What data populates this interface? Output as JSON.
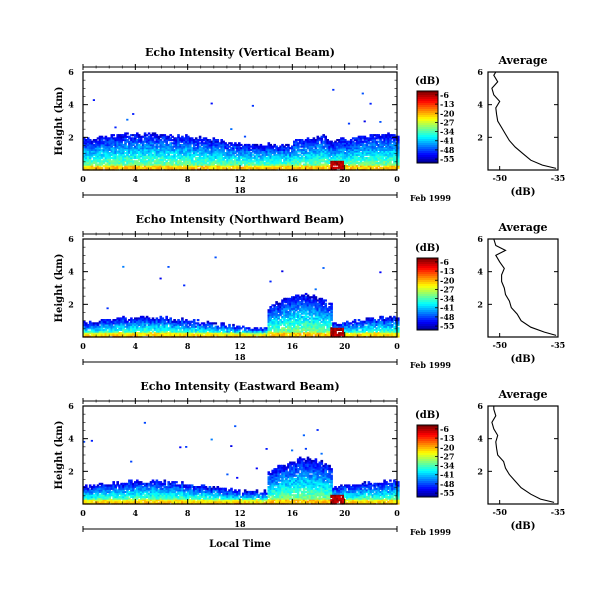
{
  "figure": {
    "x_axis_label": "Local Time",
    "date_label": "Feb 1999",
    "day_label": "18"
  },
  "colorbar": {
    "unit_label": "(dB)",
    "tick_labels": [
      "-6",
      "-13",
      "-20",
      "-27",
      "-34",
      "-41",
      "-48",
      "-55"
    ],
    "range": [
      -58,
      -3
    ]
  },
  "average": {
    "title": "Average",
    "xlabel": "(dB)",
    "yticks": [
      "2",
      "4",
      "6"
    ],
    "xticks": [
      "-50",
      "-35"
    ]
  },
  "chart_data": [
    {
      "type": "heatmap",
      "title": "Echo Intensity (Vertical Beam)",
      "ylabel": "Height (km)",
      "xticks": [
        "0",
        "4",
        "8",
        "12",
        "16",
        "20",
        "0"
      ],
      "yticks": [
        "2",
        "4",
        "6"
      ],
      "xlim": [
        0,
        24
      ],
      "ylim": [
        0,
        6
      ],
      "profile": {
        "type": "line",
        "title": "Average",
        "xlabel": "(dB)",
        "xlim": [
          -53,
          -35
        ],
        "heights": [
          0.1,
          0.3,
          0.6,
          1.0,
          1.4,
          1.8,
          2.2,
          2.6,
          3.0,
          3.4,
          3.8,
          4.2,
          4.6,
          5.0,
          5.4,
          5.8,
          6.0
        ],
        "values": [
          -35.5,
          -39,
          -42,
          -44,
          -46,
          -47.5,
          -48.5,
          -49.5,
          -50.5,
          -50.8,
          -51,
          -50,
          -51.5,
          -52,
          -50.5,
          -51.5,
          -51
        ]
      }
    },
    {
      "type": "heatmap",
      "title": "Echo Intensity (Northward Beam)",
      "ylabel": "Height (km)",
      "xticks": [
        "0",
        "4",
        "8",
        "12",
        "16",
        "20",
        "0"
      ],
      "yticks": [
        "2",
        "4",
        "6"
      ],
      "xlim": [
        0,
        24
      ],
      "ylim": [
        0,
        6
      ],
      "profile": {
        "type": "line",
        "title": "Average",
        "xlabel": "(dB)",
        "xlim": [
          -53,
          -35
        ],
        "heights": [
          0.1,
          0.3,
          0.6,
          1.0,
          1.4,
          1.8,
          2.2,
          2.6,
          3.0,
          3.4,
          3.8,
          4.2,
          4.6,
          5.0,
          5.3,
          5.6,
          6.0
        ],
        "values": [
          -35.5,
          -38.5,
          -42,
          -44.5,
          -45.5,
          -47,
          -47.5,
          -48.5,
          -48.8,
          -49.5,
          -49.5,
          -48.8,
          -50,
          -51,
          -48.5,
          -51,
          -51.5
        ]
      }
    },
    {
      "type": "heatmap",
      "title": "Echo Intensity (Eastward Beam)",
      "ylabel": "Height (km)",
      "xticks": [
        "0",
        "4",
        "8",
        "12",
        "16",
        "20",
        "0"
      ],
      "yticks": [
        "2",
        "4",
        "6"
      ],
      "xlim": [
        0,
        24
      ],
      "ylim": [
        0,
        6
      ],
      "profile": {
        "type": "line",
        "title": "Average",
        "xlabel": "(dB)",
        "xlim": [
          -53,
          -35
        ],
        "heights": [
          0.1,
          0.3,
          0.6,
          1.0,
          1.4,
          1.8,
          2.2,
          2.6,
          3.0,
          3.4,
          3.8,
          4.2,
          4.6,
          5.0,
          5.4,
          5.8,
          6.0
        ],
        "values": [
          -36,
          -39.5,
          -42,
          -44.5,
          -46,
          -47.5,
          -48.5,
          -49,
          -50.5,
          -50.8,
          -51,
          -50.5,
          -51.5,
          -52,
          -51,
          -51.5,
          -51.5
        ]
      }
    }
  ]
}
